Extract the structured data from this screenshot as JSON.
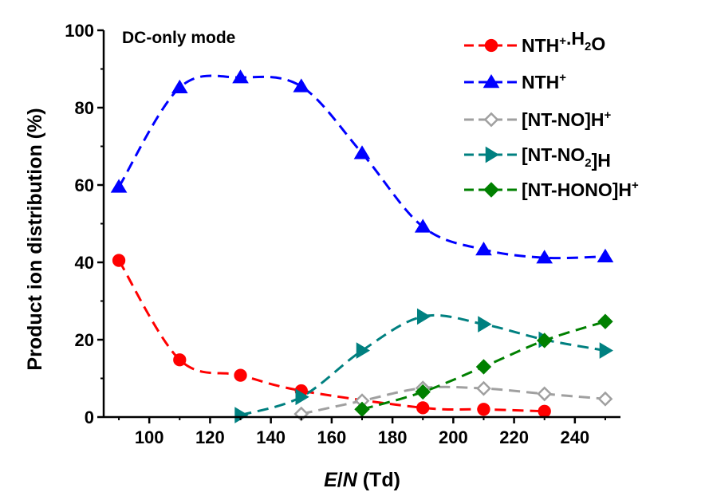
{
  "chart_data": {
    "type": "line",
    "annotation": "DC-only mode",
    "xlabel": {
      "italic_1": "E",
      "sep": "/",
      "italic_2": "N",
      "rest": " (Td)"
    },
    "ylabel": "Product ion distribution (%)",
    "xlim": [
      85,
      255
    ],
    "ylim": [
      0,
      100
    ],
    "xticks": [
      100,
      120,
      140,
      160,
      180,
      200,
      220,
      240
    ],
    "yticks": [
      0,
      20,
      40,
      60,
      80,
      100
    ],
    "grid": false,
    "legend_position": "top-right",
    "series": [
      {
        "name": "NTH+.H2O",
        "legend": [
          {
            "t": "NTH"
          },
          {
            "t": "+",
            "sup": true
          },
          {
            "t": ".H"
          },
          {
            "t": "2",
            "sub": true
          },
          {
            "t": "O"
          }
        ],
        "color": "#ff0000",
        "marker": "circle",
        "filled": true,
        "points": [
          [
            90,
            40.5
          ],
          [
            110,
            14.8
          ],
          [
            130,
            10.8
          ],
          [
            150,
            6.8
          ],
          [
            190,
            2.4
          ],
          [
            210,
            2.0
          ],
          [
            230,
            1.5
          ]
        ]
      },
      {
        "name": "NTH+",
        "legend": [
          {
            "t": "NTH"
          },
          {
            "t": "+",
            "sup": true
          }
        ],
        "color": "#0000ff",
        "marker": "triangle-up",
        "filled": true,
        "points": [
          [
            90,
            59.5
          ],
          [
            110,
            85.2
          ],
          [
            130,
            87.8
          ],
          [
            150,
            85.5
          ],
          [
            170,
            68.2
          ],
          [
            190,
            49.2
          ],
          [
            210,
            43.3
          ],
          [
            230,
            41.2
          ],
          [
            250,
            41.5
          ]
        ]
      },
      {
        "name": "[NT-NO]H+",
        "legend": [
          {
            "t": "[NT-NO]H"
          },
          {
            "t": "+",
            "sup": true
          }
        ],
        "color": "#a0a0a0",
        "marker": "diamond",
        "filled": false,
        "points": [
          [
            150,
            0.8
          ],
          [
            170,
            4.2
          ],
          [
            190,
            7.5
          ],
          [
            210,
            7.4
          ],
          [
            230,
            6.0
          ],
          [
            250,
            4.7
          ]
        ]
      },
      {
        "name": "[NT-NO2]H",
        "legend": [
          {
            "t": " [NT-NO"
          },
          {
            "t": "2",
            "sub": true
          },
          {
            "t": "]H"
          }
        ],
        "color": "#008080",
        "marker": "triangle-right",
        "filled": true,
        "points": [
          [
            130,
            0.5
          ],
          [
            150,
            5.2
          ],
          [
            170,
            17.2
          ],
          [
            190,
            26.0
          ],
          [
            210,
            24.0
          ],
          [
            230,
            20.0
          ],
          [
            250,
            17.2
          ]
        ]
      },
      {
        "name": "[NT-HONO]H+",
        "legend": [
          {
            "t": "[NT-HONO]H"
          },
          {
            "t": "+",
            "sup": true
          }
        ],
        "color": "#008000",
        "marker": "diamond",
        "filled": true,
        "points": [
          [
            170,
            2.0
          ],
          [
            190,
            6.5
          ],
          [
            210,
            13.0
          ],
          [
            230,
            19.8
          ],
          [
            250,
            24.7
          ]
        ]
      }
    ]
  }
}
